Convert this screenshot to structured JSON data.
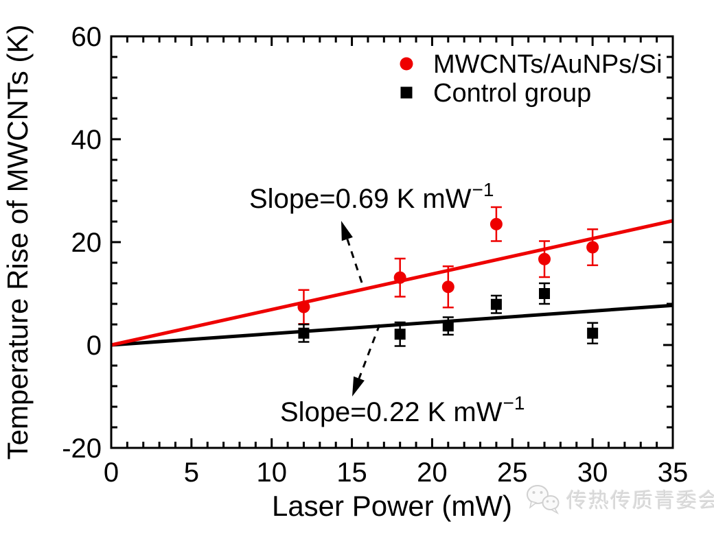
{
  "chart_data": {
    "type": "scatter",
    "xlabel": "Laser Power (mW)",
    "ylabel": "Temperature Rise of MWCNTs (K)",
    "xlim": [
      0,
      35
    ],
    "ylim": [
      -20,
      60
    ],
    "x_major_ticks": [
      0,
      5,
      10,
      15,
      20,
      25,
      30,
      35
    ],
    "x_minor_step": 1,
    "y_major_ticks": [
      -20,
      0,
      20,
      40,
      60
    ],
    "y_minor_step": 4,
    "grid": false,
    "legend_position": "top-right",
    "series": [
      {
        "name": "MWCNTs/AuNPs/Si",
        "marker": "circle",
        "color": "#ee0000",
        "x": [
          12,
          18,
          21,
          24,
          27,
          30
        ],
        "y": [
          7.4,
          13.1,
          11.3,
          23.5,
          16.7,
          19.0
        ],
        "yerr": [
          3.3,
          3.7,
          4.0,
          3.3,
          3.5,
          3.5
        ]
      },
      {
        "name": "Control group",
        "marker": "square",
        "color": "#000000",
        "x": [
          12,
          18,
          21,
          24,
          27,
          30
        ],
        "y": [
          2.3,
          2.1,
          3.7,
          7.9,
          10.0,
          2.3
        ],
        "yerr": [
          1.7,
          2.3,
          1.7,
          1.7,
          2.0,
          2.0
        ]
      }
    ],
    "fit_lines": [
      {
        "name": "MWCNTs/AuNPs/Si fit",
        "slope": 0.69,
        "intercept": 0,
        "x_start": 0,
        "x_end": 35,
        "color": "#ee0000"
      },
      {
        "name": "Control group fit",
        "slope": 0.22,
        "intercept": 0,
        "x_start": 0,
        "x_end": 35,
        "color": "#000000"
      }
    ],
    "annotations": [
      {
        "text": "Slope=0.69 K mW",
        "sup": "−1"
      },
      {
        "text": "Slope=0.22 K mW",
        "sup": "−1"
      }
    ]
  },
  "watermark": {
    "text": "传热传质青委会",
    "icon": "wechat-bubbles-icon",
    "color": "#d8d8d8"
  }
}
